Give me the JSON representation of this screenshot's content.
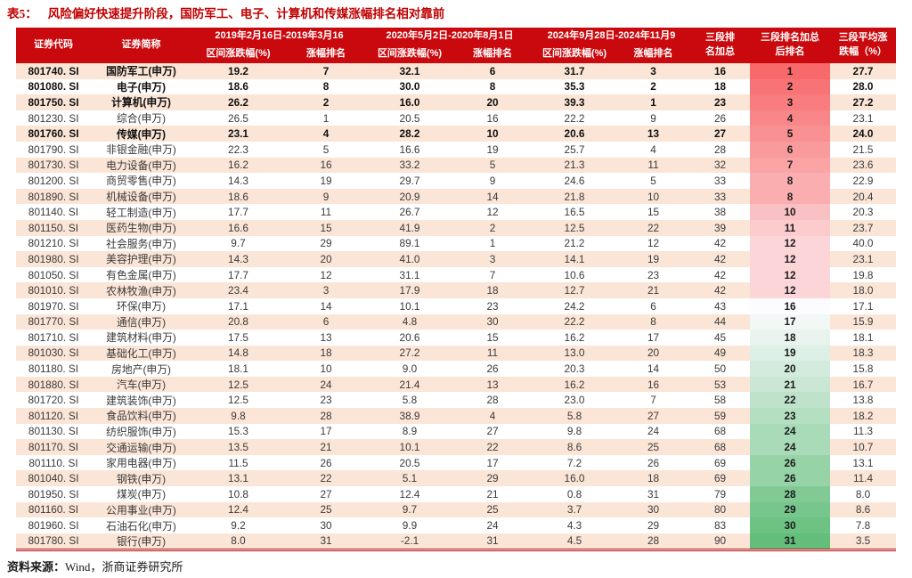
{
  "title": {
    "label": "表5：",
    "text": "风险偏好快速提升阶段，国防军工、电子、计算机和传媒涨幅排名相对靠前"
  },
  "footer": {
    "source_label": "资料来源：",
    "source_text": "Wind，浙商证券研究所"
  },
  "colors": {
    "title_red": "#c00000",
    "header_bg": "#c9090d",
    "row_stripe": "#fbe5d6",
    "scale_red": "#f8696b",
    "scale_mid": "#fcfcff",
    "scale_green": "#63be7b"
  },
  "chart_data": {
    "type": "table",
    "headers": {
      "code": "证券代码",
      "name": "证券简称",
      "period1": "2019年2月16日-2019年3月16",
      "period2": "2020年5月2日-2020年8月1日",
      "period3": "2024年9月28日-2024年11月9",
      "sub_change": "区间涨跌幅(%)",
      "sub_rank": "涨幅排名",
      "rank_sum_line1": "三段排",
      "rank_sum_line2": "名加总",
      "final_rank_line1": "三段排名加总",
      "final_rank_line2": "后排名",
      "avg_line1": "三段平均涨",
      "avg_line2": "跌幅（%）"
    },
    "row_fields": [
      "code",
      "name",
      "p1_change",
      "p1_rank",
      "p2_change",
      "p2_rank",
      "p3_change",
      "p3_rank",
      "rank_sum",
      "final_rank",
      "avg_change"
    ],
    "bold_rows": [
      0,
      1,
      2,
      4
    ],
    "rows": [
      [
        "801740. SI",
        "国防军工(申万)",
        "19.2",
        "7",
        "32.1",
        "6",
        "31.7",
        "3",
        "16",
        "1",
        "27.7"
      ],
      [
        "801080. SI",
        "电子(申万)",
        "18.6",
        "8",
        "30.0",
        "8",
        "35.3",
        "2",
        "18",
        "2",
        "28.0"
      ],
      [
        "801750. SI",
        "计算机(申万)",
        "26.2",
        "2",
        "16.0",
        "20",
        "39.3",
        "1",
        "23",
        "3",
        "27.2"
      ],
      [
        "801230. SI",
        "综合(申万)",
        "26.5",
        "1",
        "20.5",
        "16",
        "22.2",
        "9",
        "26",
        "4",
        "23.1"
      ],
      [
        "801760. SI",
        "传媒(申万)",
        "23.1",
        "4",
        "28.2",
        "10",
        "20.6",
        "13",
        "27",
        "5",
        "24.0"
      ],
      [
        "801790. SI",
        "非银金融(申万)",
        "22.3",
        "5",
        "16.6",
        "19",
        "25.7",
        "4",
        "28",
        "6",
        "21.5"
      ],
      [
        "801730. SI",
        "电力设备(申万)",
        "16.2",
        "16",
        "33.2",
        "5",
        "21.3",
        "11",
        "32",
        "7",
        "23.6"
      ],
      [
        "801200. SI",
        "商贸零售(申万)",
        "14.3",
        "19",
        "29.7",
        "9",
        "24.6",
        "5",
        "33",
        "8",
        "22.9"
      ],
      [
        "801890. SI",
        "机械设备(申万)",
        "18.6",
        "9",
        "20.9",
        "14",
        "21.8",
        "10",
        "33",
        "8",
        "20.4"
      ],
      [
        "801140. SI",
        "轻工制造(申万)",
        "17.7",
        "11",
        "26.7",
        "12",
        "16.5",
        "15",
        "38",
        "10",
        "20.3"
      ],
      [
        "801150. SI",
        "医药生物(申万)",
        "16.6",
        "15",
        "41.9",
        "2",
        "12.5",
        "22",
        "39",
        "11",
        "23.7"
      ],
      [
        "801210. SI",
        "社会服务(申万)",
        "9.7",
        "29",
        "89.1",
        "1",
        "21.2",
        "12",
        "42",
        "12",
        "40.0"
      ],
      [
        "801980. SI",
        "美容护理(申万)",
        "14.3",
        "20",
        "41.0",
        "3",
        "14.1",
        "19",
        "42",
        "12",
        "23.1"
      ],
      [
        "801050. SI",
        "有色金属(申万)",
        "17.7",
        "12",
        "31.1",
        "7",
        "10.6",
        "23",
        "42",
        "12",
        "19.8"
      ],
      [
        "801010. SI",
        "农林牧渔(申万)",
        "23.4",
        "3",
        "17.9",
        "18",
        "12.7",
        "21",
        "42",
        "12",
        "18.0"
      ],
      [
        "801970. SI",
        "环保(申万)",
        "17.1",
        "14",
        "10.1",
        "23",
        "24.2",
        "6",
        "43",
        "16",
        "17.1"
      ],
      [
        "801770. SI",
        "通信(申万)",
        "20.8",
        "6",
        "4.8",
        "30",
        "22.2",
        "8",
        "44",
        "17",
        "15.9"
      ],
      [
        "801710. SI",
        "建筑材料(申万)",
        "17.5",
        "13",
        "20.6",
        "15",
        "16.2",
        "17",
        "45",
        "18",
        "18.1"
      ],
      [
        "801030. SI",
        "基础化工(申万)",
        "14.8",
        "18",
        "27.2",
        "11",
        "13.0",
        "20",
        "49",
        "19",
        "18.3"
      ],
      [
        "801180. SI",
        "房地产(申万)",
        "18.1",
        "10",
        "9.0",
        "26",
        "20.3",
        "14",
        "50",
        "20",
        "15.8"
      ],
      [
        "801880. SI",
        "汽车(申万)",
        "12.5",
        "24",
        "21.4",
        "13",
        "16.2",
        "16",
        "53",
        "21",
        "16.7"
      ],
      [
        "801720. SI",
        "建筑装饰(申万)",
        "12.5",
        "23",
        "5.8",
        "28",
        "23.0",
        "7",
        "58",
        "22",
        "13.8"
      ],
      [
        "801120. SI",
        "食品饮料(申万)",
        "9.8",
        "28",
        "38.9",
        "4",
        "5.8",
        "27",
        "59",
        "23",
        "18.2"
      ],
      [
        "801130. SI",
        "纺织服饰(申万)",
        "15.3",
        "17",
        "8.9",
        "27",
        "9.8",
        "24",
        "68",
        "24",
        "11.3"
      ],
      [
        "801170. SI",
        "交通运输(申万)",
        "13.5",
        "21",
        "10.1",
        "22",
        "8.6",
        "25",
        "68",
        "24",
        "10.7"
      ],
      [
        "801110. SI",
        "家用电器(申万)",
        "11.5",
        "26",
        "20.5",
        "17",
        "7.2",
        "26",
        "69",
        "26",
        "13.1"
      ],
      [
        "801040. SI",
        "钢铁(申万)",
        "13.1",
        "22",
        "5.1",
        "29",
        "16.0",
        "18",
        "69",
        "26",
        "11.4"
      ],
      [
        "801950. SI",
        "煤炭(申万)",
        "10.8",
        "27",
        "12.4",
        "21",
        "0.8",
        "31",
        "79",
        "28",
        "8.0"
      ],
      [
        "801160. SI",
        "公用事业(申万)",
        "12.4",
        "25",
        "9.7",
        "25",
        "3.7",
        "30",
        "80",
        "29",
        "8.6"
      ],
      [
        "801960. SI",
        "石油石化(申万)",
        "9.2",
        "30",
        "9.9",
        "24",
        "4.3",
        "29",
        "83",
        "30",
        "7.8"
      ],
      [
        "801780. SI",
        "银行(申万)",
        "8.0",
        "31",
        "-2.1",
        "31",
        "4.5",
        "28",
        "90",
        "31",
        "3.5"
      ]
    ]
  }
}
